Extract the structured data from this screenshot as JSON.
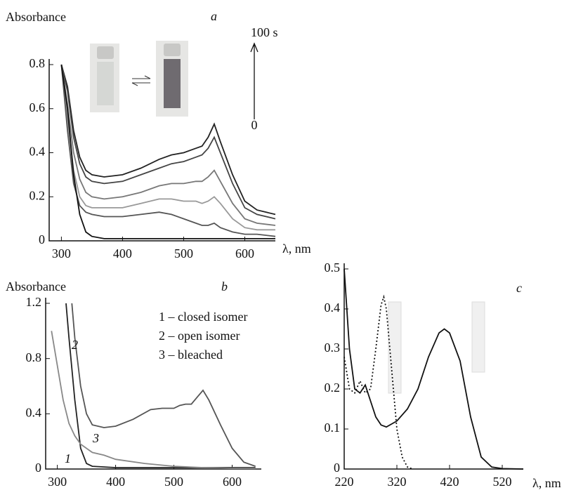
{
  "chart_data": [
    {
      "type": "line",
      "title": "a",
      "ylabel": "Absorbance",
      "xlabel": "λ, nm",
      "xlim": [
        280,
        650
      ],
      "ylim": [
        0,
        0.8
      ],
      "xticks": [
        300,
        400,
        500,
        600
      ],
      "yticks": [
        0,
        0.2,
        0.4,
        0.6,
        0.8
      ],
      "annotations": [
        "100 s",
        "0"
      ],
      "series": [
        {
          "color": "#222222",
          "x": [
            300,
            310,
            320,
            330,
            340,
            350,
            370,
            400,
            430,
            460,
            480,
            500,
            520,
            530,
            540,
            550,
            560,
            580,
            600,
            620,
            650
          ],
          "values": [
            0.8,
            0.7,
            0.5,
            0.38,
            0.32,
            0.3,
            0.29,
            0.3,
            0.33,
            0.37,
            0.39,
            0.4,
            0.42,
            0.43,
            0.47,
            0.53,
            0.45,
            0.3,
            0.18,
            0.14,
            0.12
          ]
        },
        {
          "color": "#444444",
          "x": [
            300,
            310,
            320,
            330,
            340,
            350,
            370,
            400,
            430,
            460,
            480,
            500,
            520,
            530,
            540,
            550,
            560,
            580,
            600,
            620,
            650
          ],
          "values": [
            0.8,
            0.68,
            0.47,
            0.35,
            0.29,
            0.27,
            0.26,
            0.27,
            0.3,
            0.33,
            0.35,
            0.36,
            0.38,
            0.39,
            0.42,
            0.47,
            0.4,
            0.26,
            0.15,
            0.12,
            0.1
          ]
        },
        {
          "color": "#777777",
          "x": [
            300,
            310,
            320,
            330,
            340,
            350,
            370,
            400,
            430,
            460,
            480,
            500,
            520,
            530,
            540,
            550,
            560,
            580,
            600,
            620,
            650
          ],
          "values": [
            0.8,
            0.62,
            0.4,
            0.28,
            0.22,
            0.2,
            0.19,
            0.2,
            0.22,
            0.25,
            0.26,
            0.26,
            0.27,
            0.27,
            0.29,
            0.32,
            0.27,
            0.17,
            0.1,
            0.08,
            0.07
          ]
        },
        {
          "color": "#999999",
          "x": [
            300,
            310,
            320,
            330,
            340,
            350,
            370,
            400,
            430,
            460,
            480,
            500,
            520,
            530,
            540,
            550,
            560,
            580,
            600,
            620,
            650
          ],
          "values": [
            0.8,
            0.55,
            0.32,
            0.2,
            0.16,
            0.15,
            0.15,
            0.15,
            0.17,
            0.19,
            0.19,
            0.18,
            0.18,
            0.17,
            0.18,
            0.2,
            0.17,
            0.1,
            0.06,
            0.05,
            0.05
          ]
        },
        {
          "color": "#555555",
          "x": [
            300,
            310,
            320,
            330,
            340,
            350,
            370,
            400,
            430,
            460,
            480,
            500,
            520,
            530,
            540,
            550,
            560,
            580,
            600,
            620,
            650
          ],
          "values": [
            0.8,
            0.5,
            0.26,
            0.16,
            0.13,
            0.12,
            0.11,
            0.11,
            0.12,
            0.13,
            0.12,
            0.1,
            0.08,
            0.07,
            0.07,
            0.08,
            0.06,
            0.04,
            0.03,
            0.03,
            0.02
          ]
        },
        {
          "color": "#111111",
          "x": [
            300,
            310,
            320,
            330,
            340,
            350,
            370,
            400,
            430,
            460,
            480,
            500,
            520,
            530,
            540,
            550,
            560,
            580,
            600,
            620,
            650
          ],
          "values": [
            0.8,
            0.6,
            0.3,
            0.12,
            0.04,
            0.02,
            0.01,
            0.01,
            0.01,
            0.01,
            0.01,
            0.01,
            0.01,
            0.01,
            0.01,
            0.01,
            0.01,
            0.01,
            0.01,
            0.01,
            0.01
          ]
        }
      ]
    },
    {
      "type": "line",
      "title": "b",
      "ylabel": "Absorbance",
      "xlim": [
        280,
        650
      ],
      "ylim": [
        0,
        1.2
      ],
      "xticks": [
        300,
        400,
        500,
        600
      ],
      "yticks": [
        0,
        0.4,
        0.8,
        1.2
      ],
      "series": [
        {
          "name": "1 – closed isomer",
          "curve_label": "1",
          "color": "#222222",
          "x": [
            315,
            320,
            330,
            340,
            350,
            360,
            400,
            500,
            600,
            640
          ],
          "values": [
            1.2,
            0.95,
            0.5,
            0.15,
            0.04,
            0.02,
            0.01,
            0.01,
            0.01,
            0.01
          ]
        },
        {
          "name": "2 – open isomer",
          "curve_label": "2",
          "color": "#555555",
          "x": [
            325,
            330,
            340,
            350,
            360,
            380,
            400,
            430,
            460,
            480,
            500,
            510,
            520,
            530,
            540,
            550,
            560,
            580,
            600,
            620,
            640
          ],
          "values": [
            1.2,
            0.95,
            0.6,
            0.4,
            0.32,
            0.3,
            0.31,
            0.36,
            0.43,
            0.44,
            0.44,
            0.46,
            0.47,
            0.47,
            0.52,
            0.57,
            0.5,
            0.32,
            0.15,
            0.05,
            0.02
          ]
        },
        {
          "name": "3 – bleached",
          "curve_label": "3",
          "color": "#888888",
          "x": [
            290,
            300,
            310,
            320,
            330,
            340,
            360,
            380,
            400,
            450,
            500,
            550,
            600,
            640
          ],
          "values": [
            1.0,
            0.75,
            0.5,
            0.33,
            0.24,
            0.18,
            0.12,
            0.1,
            0.07,
            0.04,
            0.02,
            0.01,
            0.005,
            0.005
          ]
        }
      ]
    },
    {
      "type": "line",
      "title": "c",
      "xlabel": "λ, nm",
      "xlim": [
        220,
        560
      ],
      "ylim": [
        0,
        0.5
      ],
      "xticks": [
        220,
        320,
        420,
        520
      ],
      "yticks": [
        0,
        0.1,
        0.2,
        0.3,
        0.4,
        0.5
      ],
      "series": [
        {
          "color": "#111111",
          "line_style": "solid",
          "x": [
            220,
            230,
            240,
            250,
            260,
            270,
            280,
            290,
            300,
            320,
            340,
            360,
            380,
            400,
            410,
            420,
            440,
            460,
            480,
            500,
            520,
            560
          ],
          "values": [
            0.5,
            0.3,
            0.2,
            0.19,
            0.21,
            0.17,
            0.13,
            0.11,
            0.105,
            0.12,
            0.15,
            0.2,
            0.28,
            0.34,
            0.35,
            0.34,
            0.27,
            0.13,
            0.03,
            0.005,
            0.001,
            0
          ]
        },
        {
          "color": "#111111",
          "line_style": "dotted",
          "x": [
            220,
            230,
            240,
            250,
            260,
            270,
            280,
            290,
            295,
            300,
            310,
            320,
            330,
            340,
            350
          ],
          "values": [
            0.28,
            0.2,
            0.19,
            0.22,
            0.19,
            0.2,
            0.3,
            0.41,
            0.43,
            0.4,
            0.25,
            0.1,
            0.03,
            0.005,
            0
          ]
        }
      ]
    }
  ]
}
